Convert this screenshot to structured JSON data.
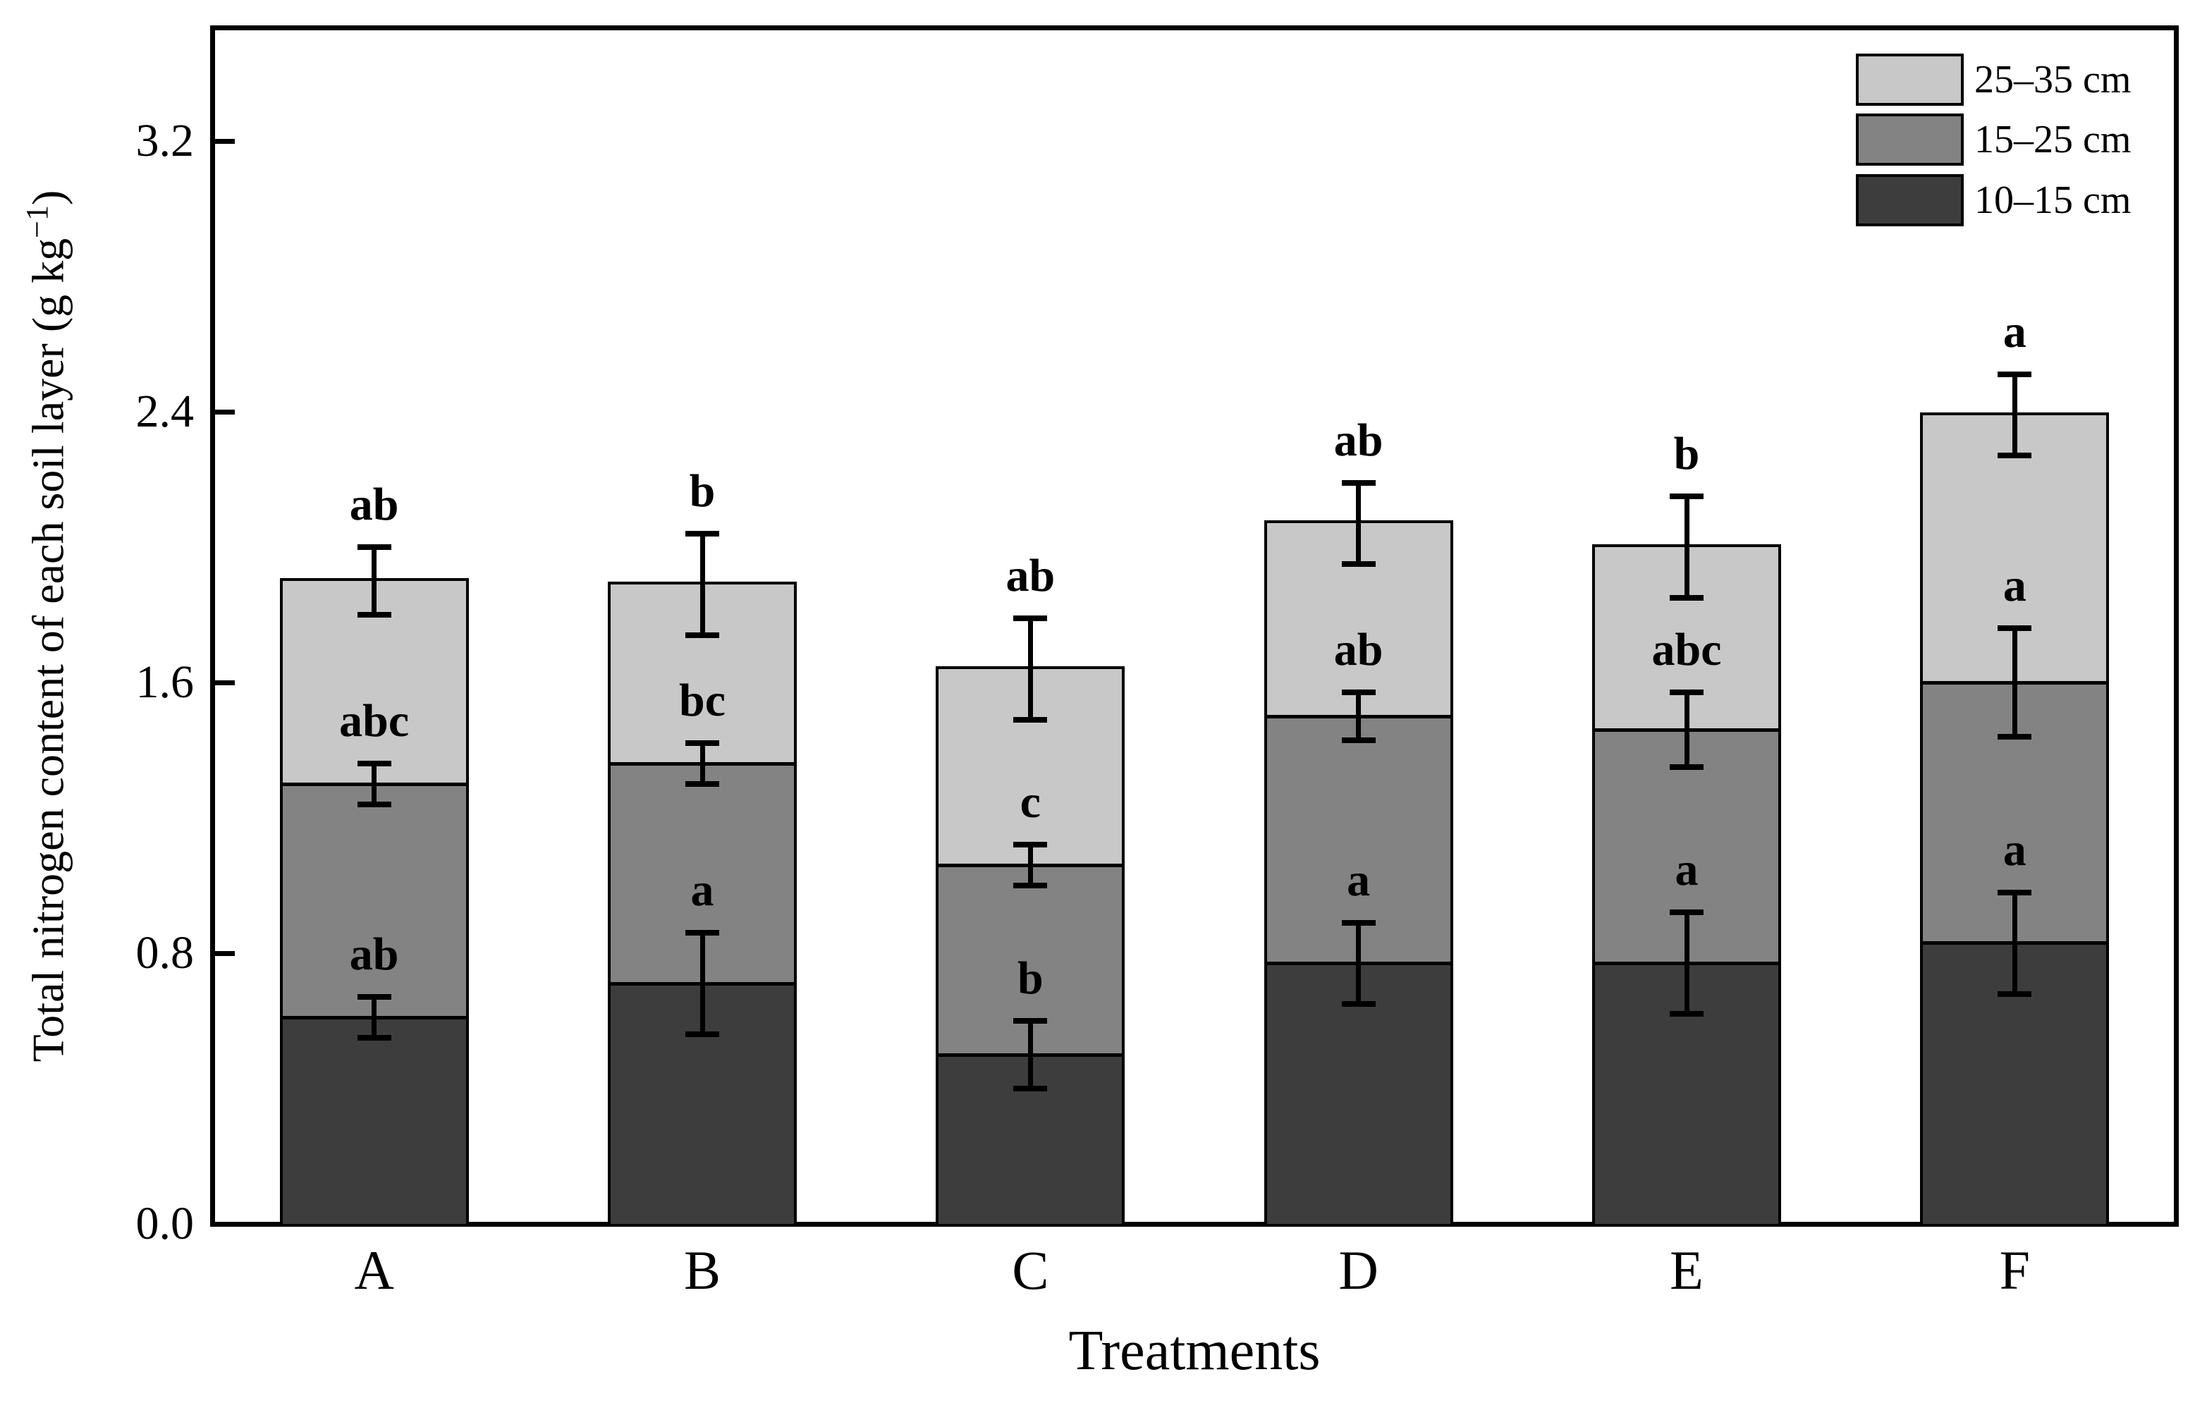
{
  "figure": {
    "xlabel": "Treatments",
    "ylabel_prefix": "Total nitrogen content of each soil layer (g kg",
    "ylabel_sup": "−1",
    "ylabel_suffix": ")"
  },
  "chart_data": {
    "type": "bar",
    "stacked": true,
    "title": "",
    "xlabel": "Treatments",
    "ylabel": "Total nitrogen content of each soil layer (g kg⁻¹)",
    "ylim": [
      0,
      3.5
    ],
    "yticks": [
      "0.0",
      "0.8",
      "1.6",
      "2.4",
      "3.2"
    ],
    "grid": false,
    "legend_position": "top-right-inside",
    "categories": [
      "A",
      "B",
      "C",
      "D",
      "E",
      "F"
    ],
    "series": [
      {
        "name": "10–15 cm",
        "color": "#3d3d3d",
        "values": [
          0.61,
          0.71,
          0.5,
          0.77,
          0.77,
          0.83
        ],
        "errors": [
          0.06,
          0.15,
          0.1,
          0.12,
          0.15,
          0.15
        ],
        "letters": [
          "ab",
          "a",
          "b",
          "a",
          "a",
          "a"
        ]
      },
      {
        "name": "15–25 cm",
        "color": "#838383",
        "values": [
          0.69,
          0.65,
          0.56,
          0.73,
          0.69,
          0.77
        ],
        "errors": [
          0.06,
          0.06,
          0.06,
          0.07,
          0.11,
          0.16
        ],
        "letters": [
          "abc",
          "bc",
          "c",
          "ab",
          "abc",
          "a"
        ]
      },
      {
        "name": "25–35 cm",
        "color": "#c8c8c8",
        "values": [
          0.6,
          0.53,
          0.58,
          0.57,
          0.54,
          0.79
        ],
        "errors": [
          0.1,
          0.15,
          0.15,
          0.12,
          0.15,
          0.12
        ],
        "letters": [
          "ab",
          "b",
          "ab",
          "ab",
          "b",
          "a"
        ]
      }
    ],
    "stack_totals": [
      1.9,
      1.89,
      1.64,
      2.07,
      2.0,
      2.39
    ],
    "legend": [
      {
        "label": "25–35 cm",
        "color": "#c8c8c8"
      },
      {
        "label": "15–25 cm",
        "color": "#838383"
      },
      {
        "label": "10–15 cm",
        "color": "#3d3d3d"
      }
    ]
  }
}
